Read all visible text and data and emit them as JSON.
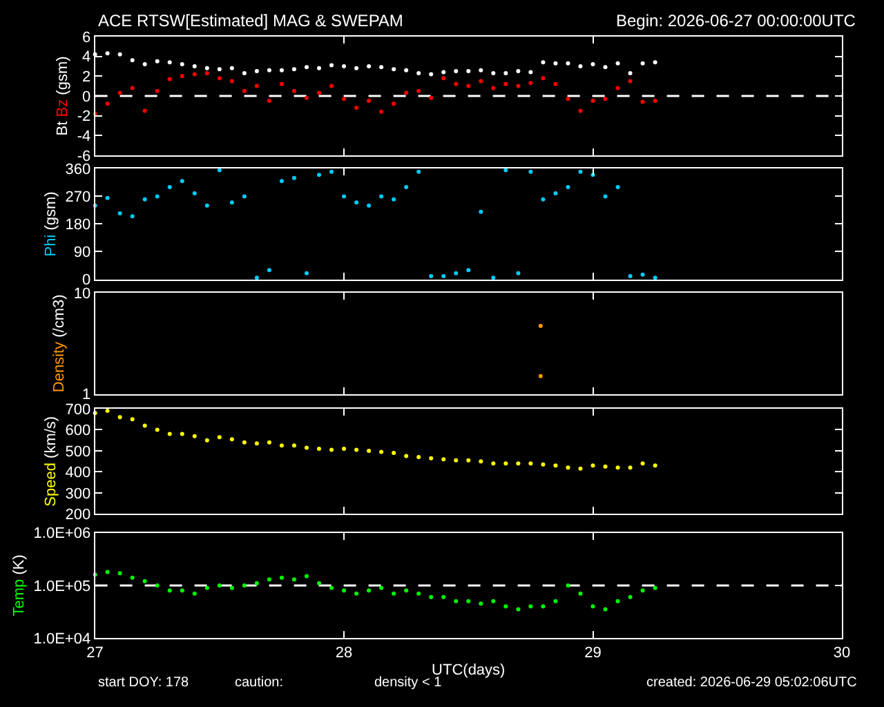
{
  "chart_data": [
    {
      "type": "scatter",
      "title": "ACE RTSW[Estimated] MAG & SWEPAM",
      "subtitle": "Begin: 2026-06-27 00:00:00UTC",
      "ylabel": "(gsm)",
      "marker": "circle",
      "grid": false,
      "legend": false,
      "tick_labels": "y",
      "x": [
        27.0,
        27.05,
        27.1,
        27.15,
        27.2,
        27.25,
        27.3,
        27.35,
        27.4,
        27.45,
        27.5,
        27.55,
        27.6,
        27.65,
        27.7,
        27.75,
        27.8,
        27.85,
        27.9,
        27.95,
        28.0,
        28.05,
        28.1,
        28.15,
        28.2,
        28.25,
        28.3,
        28.35,
        28.4,
        28.45,
        28.5,
        28.55,
        28.6,
        28.65,
        28.7,
        28.75,
        28.8,
        28.85,
        28.9,
        28.95,
        29.0,
        29.05,
        29.1,
        29.15,
        29.2,
        29.25
      ],
      "xlim": [
        27,
        30
      ],
      "xticks": [
        27,
        28,
        29,
        30
      ],
      "ylim": [
        -6,
        6
      ],
      "yticks": [
        -6,
        -4,
        -2,
        0,
        2,
        4,
        6
      ],
      "ref_lines": [
        {
          "axis": "y",
          "value": 0,
          "color": "#ffffff",
          "line_style": "dashed"
        }
      ],
      "series": [
        {
          "name": "Bt",
          "color": "#ffffff",
          "values": [
            4.2,
            4.3,
            4.2,
            3.6,
            3.2,
            3.5,
            3.4,
            3.2,
            3.0,
            2.8,
            2.7,
            2.8,
            2.3,
            2.5,
            2.6,
            2.6,
            2.7,
            2.9,
            2.8,
            3.1,
            3.0,
            2.8,
            3.0,
            2.9,
            2.7,
            2.6,
            2.3,
            2.2,
            2.4,
            2.5,
            2.5,
            2.6,
            2.3,
            2.3,
            2.5,
            2.4,
            3.4,
            3.3,
            3.3,
            3.0,
            3.2,
            2.9,
            3.3,
            2.3,
            3.3,
            3.4
          ]
        },
        {
          "name": "Bz",
          "color": "#ff0000",
          "values": [
            -1.8,
            -0.8,
            0.3,
            0.8,
            -1.5,
            0.5,
            1.7,
            2.0,
            2.2,
            2.3,
            1.8,
            1.5,
            0.5,
            1.0,
            -0.5,
            1.2,
            0.5,
            -0.2,
            0.3,
            1.0,
            -0.3,
            -1.2,
            -0.5,
            -1.6,
            -0.8,
            0.3,
            0.5,
            -0.2,
            1.8,
            1.2,
            1.0,
            1.5,
            0.8,
            1.2,
            1.0,
            1.3,
            1.8,
            1.2,
            -0.3,
            -1.5,
            -0.5,
            -0.3,
            0.8,
            1.5,
            -0.6,
            -0.5
          ]
        }
      ]
    },
    {
      "type": "scatter",
      "ylabel": "(gsm)",
      "marker": "circle",
      "grid": false,
      "legend": false,
      "tick_labels": "y",
      "x": [
        27.0,
        27.05,
        27.1,
        27.15,
        27.2,
        27.25,
        27.3,
        27.35,
        27.4,
        27.45,
        27.5,
        27.55,
        27.6,
        27.65,
        27.7,
        27.75,
        27.8,
        27.85,
        27.9,
        27.95,
        28.0,
        28.05,
        28.1,
        28.15,
        28.2,
        28.25,
        28.3,
        28.35,
        28.4,
        28.45,
        28.5,
        28.55,
        28.6,
        28.65,
        28.7,
        28.75,
        28.8,
        28.85,
        28.9,
        28.95,
        29.0,
        29.05,
        29.1,
        29.15,
        29.2,
        29.25
      ],
      "xlim": [
        27,
        30
      ],
      "xticks": [
        27,
        28,
        29,
        30
      ],
      "ylim": [
        0,
        360
      ],
      "yticks": [
        0,
        90,
        180,
        270,
        360
      ],
      "series": [
        {
          "name": "Phi",
          "color": "#00ccff",
          "values": [
            240,
            265,
            215,
            205,
            260,
            270,
            300,
            320,
            280,
            240,
            355,
            250,
            270,
            5,
            30,
            320,
            330,
            20,
            340,
            350,
            270,
            250,
            240,
            270,
            260,
            300,
            350,
            10,
            10,
            20,
            30,
            220,
            5,
            355,
            20,
            350,
            260,
            280,
            300,
            350,
            340,
            270,
            300,
            10,
            15,
            5
          ]
        }
      ]
    },
    {
      "type": "scatter",
      "ylabel": "(/cm3)",
      "marker": "circle",
      "grid": false,
      "legend": false,
      "tick_labels": "y",
      "log": "y",
      "x": [
        28.79,
        28.79
      ],
      "xlim": [
        27,
        30
      ],
      "xticks": [
        27,
        28,
        29,
        30
      ],
      "ylim": [
        1,
        10
      ],
      "yticks": [
        1,
        10
      ],
      "series": [
        {
          "name": "Density",
          "color": "#ff9900",
          "values": [
            4.7,
            1.5
          ]
        }
      ]
    },
    {
      "type": "scatter",
      "ylabel": "(km/s)",
      "marker": "circle",
      "grid": false,
      "legend": false,
      "tick_labels": "y",
      "x": [
        27.0,
        27.05,
        27.1,
        27.15,
        27.2,
        27.25,
        27.3,
        27.35,
        27.4,
        27.45,
        27.5,
        27.55,
        27.6,
        27.65,
        27.7,
        27.75,
        27.8,
        27.85,
        27.9,
        27.95,
        28.0,
        28.05,
        28.1,
        28.15,
        28.2,
        28.25,
        28.3,
        28.35,
        28.4,
        28.45,
        28.5,
        28.55,
        28.6,
        28.65,
        28.7,
        28.75,
        28.8,
        28.85,
        28.9,
        28.95,
        29.0,
        29.05,
        29.1,
        29.15,
        29.2,
        29.25
      ],
      "xlim": [
        27,
        30
      ],
      "xticks": [
        27,
        28,
        29,
        30
      ],
      "ylim": [
        200,
        700
      ],
      "yticks": [
        200,
        300,
        400,
        500,
        600,
        700
      ],
      "series": [
        {
          "name": "Speed",
          "color": "#ffff00",
          "values": [
            680,
            690,
            660,
            650,
            620,
            600,
            580,
            580,
            570,
            550,
            565,
            555,
            540,
            535,
            540,
            525,
            525,
            515,
            510,
            505,
            510,
            505,
            500,
            495,
            490,
            475,
            470,
            465,
            460,
            455,
            455,
            450,
            440,
            440,
            440,
            440,
            435,
            430,
            420,
            415,
            430,
            425,
            420,
            420,
            440,
            430
          ]
        }
      ]
    },
    {
      "type": "scatter",
      "ylabel": "(K)",
      "xlabel": "UTC(days)",
      "marker": "circle",
      "grid": false,
      "legend": false,
      "log": "y",
      "x": [
        27.0,
        27.05,
        27.1,
        27.15,
        27.2,
        27.25,
        27.3,
        27.35,
        27.4,
        27.45,
        27.5,
        27.55,
        27.6,
        27.65,
        27.7,
        27.75,
        27.8,
        27.85,
        27.9,
        27.95,
        28.0,
        28.05,
        28.1,
        28.15,
        28.2,
        28.25,
        28.3,
        28.35,
        28.4,
        28.45,
        28.5,
        28.55,
        28.6,
        28.65,
        28.7,
        28.75,
        28.8,
        28.85,
        28.9,
        28.95,
        29.0,
        29.05,
        29.1,
        29.15,
        29.2,
        29.25
      ],
      "xlim": [
        27,
        30
      ],
      "xticks": [
        27,
        28,
        29,
        30
      ],
      "ylim": [
        10000,
        1000000
      ],
      "yticks": [
        {
          "value": 10000,
          "label": "1.0E+04"
        },
        {
          "value": 100000,
          "label": "1.0E+05"
        },
        {
          "value": 1000000,
          "label": "1.0E+06"
        }
      ],
      "ref_lines": [
        {
          "axis": "y",
          "value": 100000,
          "color": "#ffffff",
          "line_style": "dashed"
        }
      ],
      "annotations": [
        "start DOY: 178",
        "caution:",
        "density < 1",
        "created: 2026-06-29 05:02:06UTC"
      ],
      "series": [
        {
          "name": "Temp",
          "color": "#00ff00",
          "values": [
            160000,
            180000,
            170000,
            140000,
            120000,
            100000,
            80000,
            80000,
            70000,
            90000,
            100000,
            90000,
            100000,
            110000,
            130000,
            140000,
            130000,
            150000,
            110000,
            90000,
            80000,
            70000,
            80000,
            90000,
            70000,
            80000,
            70000,
            60000,
            60000,
            50000,
            50000,
            45000,
            50000,
            40000,
            35000,
            40000,
            40000,
            50000,
            100000,
            70000,
            40000,
            35000,
            50000,
            60000,
            80000,
            90000
          ]
        }
      ]
    }
  ]
}
